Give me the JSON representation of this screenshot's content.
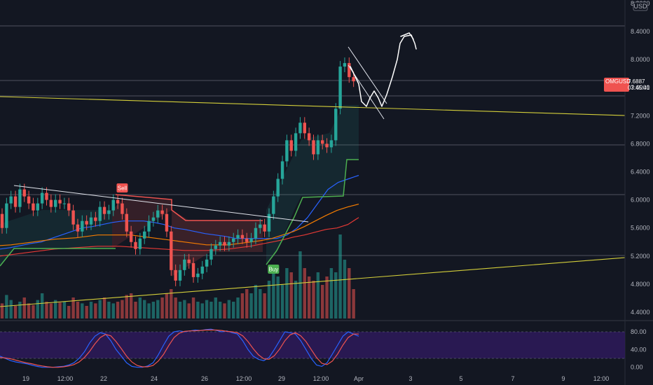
{
  "chart_data": [
    {
      "type": "candlestick",
      "symbol": "OMGUSD",
      "last_price": "7.6887",
      "countdown": "03:45:41",
      "currency": "USD",
      "y_ticks": [
        "8.8000",
        "8.4000",
        "8.0000",
        "7.6000",
        "7.2000",
        "6.8000",
        "6.4000",
        "6.0000",
        "5.6000",
        "5.2000",
        "4.8000",
        "4.4000"
      ],
      "x_ticks": [
        "19",
        "12:00",
        "22",
        "24",
        "26",
        "12:00",
        "29",
        "12:00",
        "Apr",
        "3",
        "5",
        "7",
        "9",
        "12:00"
      ],
      "signals": [
        {
          "label": "Sell",
          "x": 27,
          "price": 6.25
        },
        {
          "label": "Buy",
          "x": 61,
          "price": 5.0
        }
      ],
      "candles": [
        [
          5.8,
          5.6
        ],
        [
          5.6,
          5.95
        ],
        [
          5.95,
          6.05
        ],
        [
          6.05,
          5.9
        ],
        [
          5.9,
          6.15
        ],
        [
          6.15,
          6.05
        ],
        [
          6.05,
          5.95
        ],
        [
          5.95,
          5.85
        ],
        [
          5.85,
          5.95
        ],
        [
          5.95,
          6.1
        ],
        [
          6.1,
          6.0
        ],
        [
          6.0,
          5.9
        ],
        [
          5.9,
          6.0
        ],
        [
          6.0,
          5.95
        ],
        [
          5.95,
          5.95
        ],
        [
          5.95,
          5.85
        ],
        [
          5.85,
          5.65
        ],
        [
          5.65,
          5.55
        ],
        [
          5.55,
          5.7
        ],
        [
          5.7,
          5.65
        ],
        [
          5.65,
          5.75
        ],
        [
          5.75,
          5.7
        ],
        [
          5.7,
          5.9
        ],
        [
          5.9,
          5.8
        ],
        [
          5.8,
          5.85
        ],
        [
          5.85,
          6.0
        ],
        [
          6.0,
          5.95
        ],
        [
          5.95,
          5.8
        ],
        [
          5.8,
          5.55
        ],
        [
          5.55,
          5.4
        ],
        [
          5.4,
          5.3
        ],
        [
          5.3,
          5.45
        ],
        [
          5.45,
          5.55
        ],
        [
          5.55,
          5.7
        ],
        [
          5.7,
          5.75
        ],
        [
          5.75,
          5.85
        ],
        [
          5.85,
          5.8
        ],
        [
          5.8,
          5.55
        ],
        [
          5.55,
          5.0
        ],
        [
          5.0,
          4.85
        ],
        [
          4.85,
          5.0
        ],
        [
          5.0,
          5.15
        ],
        [
          5.15,
          5.1
        ],
        [
          5.1,
          4.9
        ],
        [
          4.9,
          4.95
        ],
        [
          4.95,
          5.05
        ],
        [
          5.05,
          5.15
        ],
        [
          5.15,
          5.3
        ],
        [
          5.3,
          5.35
        ],
        [
          5.35,
          5.4
        ],
        [
          5.4,
          5.35
        ],
        [
          5.35,
          5.4
        ],
        [
          5.4,
          5.45
        ],
        [
          5.45,
          5.5
        ],
        [
          5.5,
          5.45
        ],
        [
          5.45,
          5.4
        ],
        [
          5.4,
          5.45
        ],
        [
          5.45,
          5.6
        ],
        [
          5.6,
          5.65
        ],
        [
          5.65,
          5.55
        ],
        [
          5.55,
          5.8
        ],
        [
          5.8,
          6.05
        ],
        [
          6.05,
          6.3
        ],
        [
          6.3,
          6.55
        ],
        [
          6.55,
          6.85
        ],
        [
          6.85,
          6.7
        ],
        [
          6.7,
          6.95
        ],
        [
          6.95,
          7.1
        ],
        [
          7.1,
          6.95
        ],
        [
          6.95,
          6.85
        ],
        [
          6.85,
          6.65
        ],
        [
          6.65,
          6.85
        ],
        [
          6.85,
          6.8
        ],
        [
          6.8,
          6.75
        ],
        [
          6.75,
          6.85
        ],
        [
          6.85,
          7.3
        ],
        [
          7.3,
          7.9
        ],
        [
          7.9,
          7.95
        ],
        [
          7.95,
          7.75
        ],
        [
          7.75,
          7.69
        ]
      ],
      "volume": [
        0.18,
        0.28,
        0.22,
        0.15,
        0.2,
        0.25,
        0.18,
        0.16,
        0.22,
        0.3,
        0.2,
        0.18,
        0.22,
        0.19,
        0.2,
        0.15,
        0.25,
        0.2,
        0.18,
        0.15,
        0.2,
        0.18,
        0.22,
        0.25,
        0.2,
        0.18,
        0.2,
        0.22,
        0.28,
        0.3,
        0.2,
        0.25,
        0.22,
        0.18,
        0.2,
        0.22,
        0.25,
        0.3,
        0.35,
        0.25,
        0.2,
        0.22,
        0.18,
        0.25,
        0.2,
        0.18,
        0.22,
        0.2,
        0.25,
        0.2,
        0.18,
        0.22,
        0.2,
        0.25,
        0.3,
        0.35,
        0.3,
        0.4,
        0.35,
        0.3,
        0.45,
        0.55,
        0.5,
        0.4,
        0.6,
        0.55,
        0.45,
        0.8,
        0.6,
        0.5,
        0.45,
        0.55,
        0.4,
        0.5,
        0.6,
        0.55,
        1.0,
        0.7,
        0.6,
        0.35
      ],
      "ma_blue": [
        5.3,
        5.32,
        5.35,
        5.38,
        5.4,
        5.45,
        5.5,
        5.55,
        5.6,
        5.62,
        5.65,
        5.68,
        5.7,
        5.7,
        5.7,
        5.68,
        5.65,
        5.6,
        5.58,
        5.55,
        5.52,
        5.5,
        5.48,
        5.45,
        5.45,
        5.45,
        5.45,
        5.45,
        5.5,
        5.6,
        5.75,
        5.95,
        6.15,
        6.25,
        6.3,
        6.35
      ],
      "ma_orange": [
        5.35,
        5.36,
        5.38,
        5.4,
        5.42,
        5.44,
        5.45,
        5.46,
        5.48,
        5.5,
        5.5,
        5.5,
        5.5,
        5.48,
        5.46,
        5.44,
        5.42,
        5.4,
        5.38,
        5.36,
        5.36,
        5.36,
        5.38,
        5.4,
        5.42,
        5.45,
        5.5,
        5.55,
        5.62,
        5.7,
        5.78,
        5.85,
        5.9,
        5.94
      ],
      "ma_red": [
        5.2,
        5.22,
        5.24,
        5.26,
        5.28,
        5.3,
        5.31,
        5.32,
        5.33,
        5.34,
        5.34,
        5.34,
        5.33,
        5.32,
        5.31,
        5.3,
        5.29,
        5.28,
        5.28,
        5.28,
        5.29,
        5.3,
        5.32,
        5.34,
        5.37,
        5.4,
        5.43,
        5.47,
        5.5,
        5.54,
        5.58,
        5.6
      ],
      "stoch_ticks": [
        "80.00",
        "40.00",
        "0.00"
      ],
      "stoch_k": [
        25,
        20,
        15,
        12,
        10,
        8,
        5,
        2,
        0,
        0,
        0,
        1,
        2,
        5,
        10,
        20,
        35,
        55,
        70,
        78,
        75,
        60,
        40,
        25,
        10,
        2,
        0,
        0,
        3,
        10,
        28,
        50,
        70,
        80,
        82,
        80,
        82,
        84,
        83,
        85,
        86,
        83,
        80,
        82,
        78,
        75,
        60,
        40,
        25,
        18,
        15,
        22,
        40,
        60,
        80,
        78,
        75,
        60,
        40,
        20,
        5,
        2,
        10,
        30,
        50,
        70,
        80,
        75,
        70
      ],
      "stoch_d": [
        22,
        21,
        19,
        16,
        13,
        10,
        8,
        5,
        3,
        1,
        0,
        0,
        1,
        3,
        6,
        12,
        22,
        36,
        53,
        67,
        74,
        71,
        58,
        42,
        25,
        12,
        4,
        1,
        1,
        4,
        14,
        29,
        49,
        67,
        77,
        81,
        82,
        82,
        83,
        84,
        84,
        84,
        83,
        81,
        80,
        78,
        71,
        58,
        42,
        28,
        19,
        18,
        26,
        41,
        60,
        73,
        78,
        71,
        58,
        40,
        22,
        9,
        6,
        14,
        30,
        50,
        67,
        75,
        75
      ]
    }
  ]
}
